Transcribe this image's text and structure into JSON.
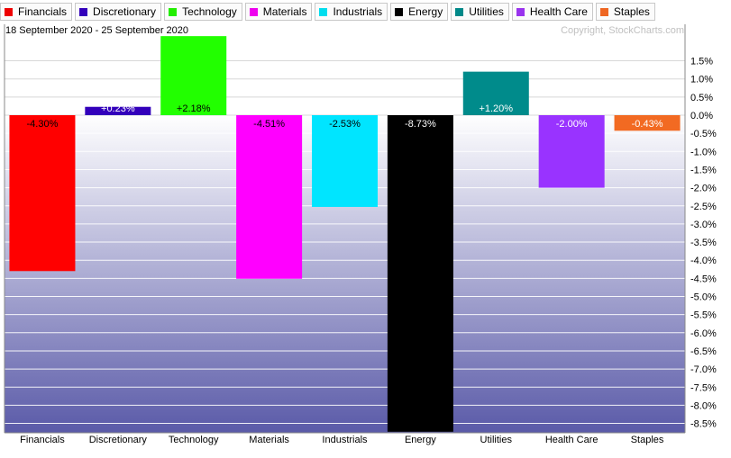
{
  "legend": [
    {
      "label": "Financials",
      "color": "#ee0000"
    },
    {
      "label": "Discretionary",
      "color": "#3300bb"
    },
    {
      "label": "Technology",
      "color": "#22ee00"
    },
    {
      "label": "Materials",
      "color": "#ee00ee"
    },
    {
      "label": "Industrials",
      "color": "#00ddee"
    },
    {
      "label": "Energy",
      "color": "#000000"
    },
    {
      "label": "Utilities",
      "color": "#008888"
    },
    {
      "label": "Health Care",
      "color": "#9933ee"
    },
    {
      "label": "Staples",
      "color": "#ee6622"
    }
  ],
  "chart_data": {
    "type": "bar",
    "subtitle": "18 September 2020 - 25 September 2020",
    "watermark": "Copyright, StockCharts.com",
    "categories": [
      "Financials",
      "Discretionary",
      "Technology",
      "Materials",
      "Industrials",
      "Energy",
      "Utilities",
      "Health Care",
      "Staples"
    ],
    "values": [
      -4.3,
      0.23,
      2.18,
      -4.51,
      -2.53,
      -8.73,
      1.2,
      -2.0,
      -0.43
    ],
    "data_labels": [
      "-4.30%",
      "+0.23%",
      "+2.18%",
      "-4.51%",
      "-2.53%",
      "-8.73%",
      "+1.20%",
      "-2.00%",
      "-0.43%"
    ],
    "colors": [
      "#ff0000",
      "#3300bb",
      "#22ff00",
      "#ff00ff",
      "#00e5ff",
      "#000000",
      "#008b8b",
      "#9933ff",
      "#f26a22"
    ],
    "label_colors": [
      "#000000",
      "#ffffff",
      "#000000",
      "#000000",
      "#000000",
      "#ffffff",
      "#ffffff",
      "#ffffff",
      "#ffffff"
    ],
    "yticks": [
      "1.5%",
      "1.0%",
      "0.5%",
      "0.0%",
      "-0.5%",
      "-1.0%",
      "-1.5%",
      "-2.0%",
      "-2.5%",
      "-3.0%",
      "-3.5%",
      "-4.0%",
      "-4.5%",
      "-5.0%",
      "-5.5%",
      "-6.0%",
      "-6.5%",
      "-7.0%",
      "-7.5%",
      "-8.0%",
      "-8.5%"
    ],
    "ytick_values": [
      1.5,
      1.0,
      0.5,
      0.0,
      -0.5,
      -1.0,
      -1.5,
      -2.0,
      -2.5,
      -3.0,
      -3.5,
      -4.0,
      -4.5,
      -5.0,
      -5.5,
      -6.0,
      -6.5,
      -7.0,
      -7.5,
      -8.0,
      -8.5
    ],
    "ylim": [
      -8.73,
      2.18
    ],
    "grid": true,
    "legend_position": "top"
  }
}
